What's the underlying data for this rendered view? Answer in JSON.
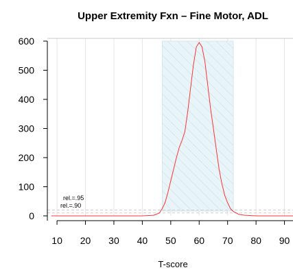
{
  "chart_data": {
    "type": "line",
    "title": "Upper Extremity Fxn – Fine Motor, ADL",
    "xlabel": "T-score",
    "ylabel": "",
    "xlim": [
      6.6,
      93
    ],
    "ylim": [
      0,
      600
    ],
    "xticks": [
      "10",
      "20",
      "30",
      "40",
      "50",
      "60",
      "70",
      "80",
      "90"
    ],
    "yticks": [
      "0",
      "100",
      "200",
      "300",
      "400",
      "500",
      "600"
    ],
    "grid": "vertical",
    "band": {
      "x_from": 47,
      "x_to": 72,
      "fill": "#e8f4f8",
      "hatch": "#bfe0ea"
    },
    "reference_lines": [
      {
        "label": "rel.=.95",
        "y": 20
      },
      {
        "label": "rel.=.90",
        "y": 10
      }
    ],
    "series": [
      {
        "color": "#ff3333",
        "x": [
          8,
          10,
          20,
          30,
          40,
          44,
          46,
          47,
          48,
          49,
          50,
          51,
          52,
          53,
          54,
          55,
          56,
          57,
          58,
          59,
          60,
          61,
          62,
          63,
          64,
          65,
          66,
          67,
          68,
          69,
          70,
          71,
          72,
          74,
          76,
          80,
          90,
          93
        ],
        "y": [
          0,
          0,
          0,
          0,
          0,
          2,
          10,
          25,
          45,
          80,
          120,
          160,
          200,
          235,
          260,
          290,
          360,
          440,
          520,
          580,
          595,
          580,
          530,
          450,
          370,
          300,
          230,
          160,
          110,
          70,
          45,
          25,
          15,
          5,
          2,
          0,
          0,
          0
        ]
      }
    ]
  }
}
